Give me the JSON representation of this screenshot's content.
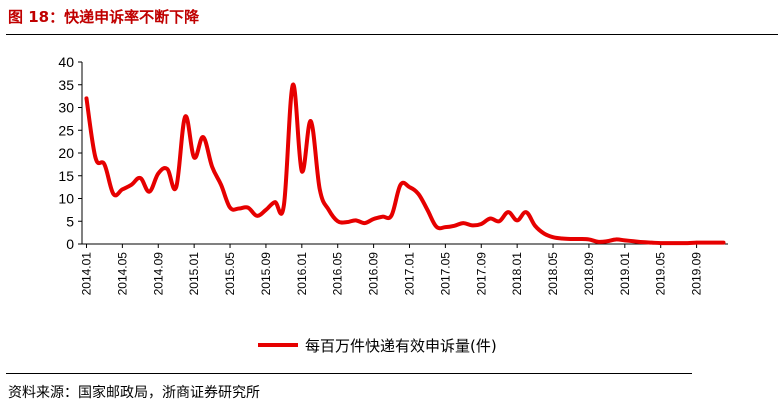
{
  "figure_title": "图 18：快递申诉率不断下降",
  "source": "资料来源：国家邮政局，浙商证券研究所",
  "colors": {
    "series": "#e60000",
    "title": "#c00000",
    "axis": "#000000"
  },
  "chart_data": {
    "type": "line",
    "title": "",
    "xlabel": "",
    "ylabel": "",
    "ylim": [
      0,
      40
    ],
    "yticks": [
      0,
      5,
      10,
      15,
      20,
      25,
      30,
      35,
      40
    ],
    "grid": false,
    "legend_position": "bottom-center",
    "x_tick_labels": [
      "2014.01",
      "2014.05",
      "2014.09",
      "2015.01",
      "2015.05",
      "2015.09",
      "2016.01",
      "2016.05",
      "2016.09",
      "2017.01",
      "2017.05",
      "2017.09",
      "2018.01",
      "2018.05",
      "2018.09",
      "2019.01",
      "2019.05",
      "2019.09"
    ],
    "x": [
      "2014.01",
      "2014.02",
      "2014.03",
      "2014.04",
      "2014.05",
      "2014.06",
      "2014.07",
      "2014.08",
      "2014.09",
      "2014.10",
      "2014.11",
      "2014.12",
      "2015.01",
      "2015.02",
      "2015.03",
      "2015.04",
      "2015.05",
      "2015.06",
      "2015.07",
      "2015.08",
      "2015.09",
      "2015.10",
      "2015.11",
      "2015.12",
      "2016.01",
      "2016.02",
      "2016.03",
      "2016.04",
      "2016.05",
      "2016.06",
      "2016.07",
      "2016.08",
      "2016.09",
      "2016.10",
      "2016.11",
      "2016.12",
      "2017.01",
      "2017.02",
      "2017.03",
      "2017.04",
      "2017.05",
      "2017.06",
      "2017.07",
      "2017.08",
      "2017.09",
      "2017.10",
      "2017.11",
      "2017.12",
      "2018.01",
      "2018.02",
      "2018.03",
      "2018.04",
      "2018.05",
      "2018.06",
      "2018.07",
      "2018.08",
      "2018.09",
      "2018.10",
      "2018.11",
      "2018.12",
      "2019.01",
      "2019.02",
      "2019.03",
      "2019.04",
      "2019.05",
      "2019.06",
      "2019.07",
      "2019.08",
      "2019.09",
      "2019.10",
      "2019.11",
      "2019.12"
    ],
    "series": [
      {
        "name": "每百万件快递有效申诉量(件)",
        "color": "#e60000",
        "values": [
          32,
          19,
          17.5,
          11,
          12,
          13,
          14.5,
          11.5,
          15.5,
          16.5,
          12.5,
          28,
          19,
          23.5,
          17,
          13,
          8,
          7.8,
          8,
          6.2,
          7.5,
          9.2,
          8.5,
          35,
          16,
          27,
          12,
          7.5,
          5,
          4.8,
          5.2,
          4.6,
          5.5,
          6,
          6.3,
          13,
          12.5,
          11,
          7.5,
          3.8,
          3.7,
          4,
          4.6,
          4.1,
          4.4,
          5.6,
          5,
          7,
          5.2,
          7,
          4,
          2.3,
          1.5,
          1.2,
          1.1,
          1.1,
          1,
          0.5,
          0.6,
          1,
          0.8,
          0.6,
          0.4,
          0.3,
          0.2,
          0.2,
          0.2,
          0.2,
          0.3,
          0.3,
          0.3,
          0.3
        ]
      }
    ]
  }
}
